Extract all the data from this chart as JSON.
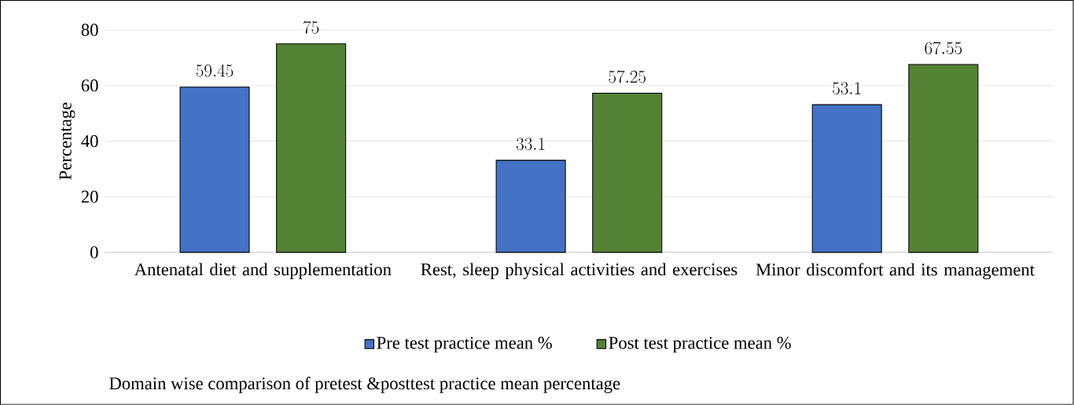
{
  "chart_data": {
    "type": "bar",
    "categories": [
      "Antenatal diet and supplementation",
      "Rest, sleep physical activities and exercises",
      "Minor discomfort and its management"
    ],
    "series": [
      {
        "name": "Pre test practice mean %",
        "color": "#4472c4",
        "values": [
          59.45,
          33.1,
          53.1
        ]
      },
      {
        "name": "Post test practice mean %",
        "color": "#548235",
        "values": [
          75,
          57.25,
          67.55
        ]
      }
    ],
    "ylabel": "Percentage",
    "ylim": [
      0,
      80
    ],
    "yticks": [
      0,
      20,
      40,
      60,
      80
    ],
    "grid": "y",
    "legend": "bottom",
    "data_labels": true,
    "annotations": [
      "Domain wise comparison of pretest &posttest practice mean percentage"
    ]
  }
}
